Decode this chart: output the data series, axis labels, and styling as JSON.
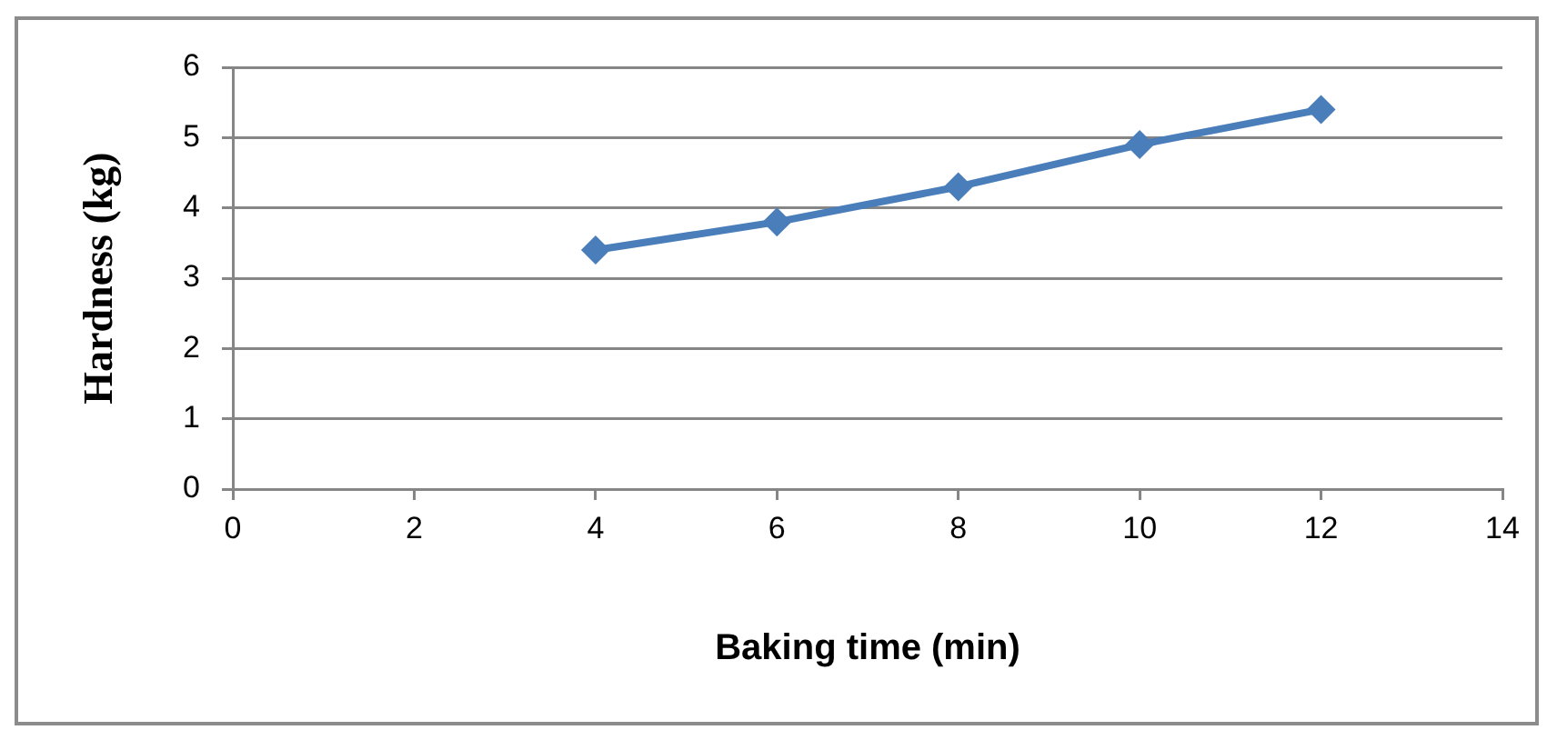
{
  "chart_data": {
    "type": "line",
    "xlabel": "Baking time (min)",
    "ylabel": "Hardness (kg)",
    "x": [
      4,
      6,
      8,
      10,
      12
    ],
    "series": [
      {
        "color": "#4a7ebb",
        "values": [
          3.4,
          3.8,
          4.3,
          4.9,
          5.4
        ]
      }
    ],
    "xlim": [
      0,
      14
    ],
    "xticks": [
      0,
      2,
      4,
      6,
      8,
      10,
      12,
      14
    ],
    "ylim": [
      0,
      6
    ],
    "yticks": [
      0,
      1,
      2,
      3,
      4,
      5,
      6
    ],
    "grid": "y",
    "marker": "diamond",
    "line_style": "solid"
  }
}
